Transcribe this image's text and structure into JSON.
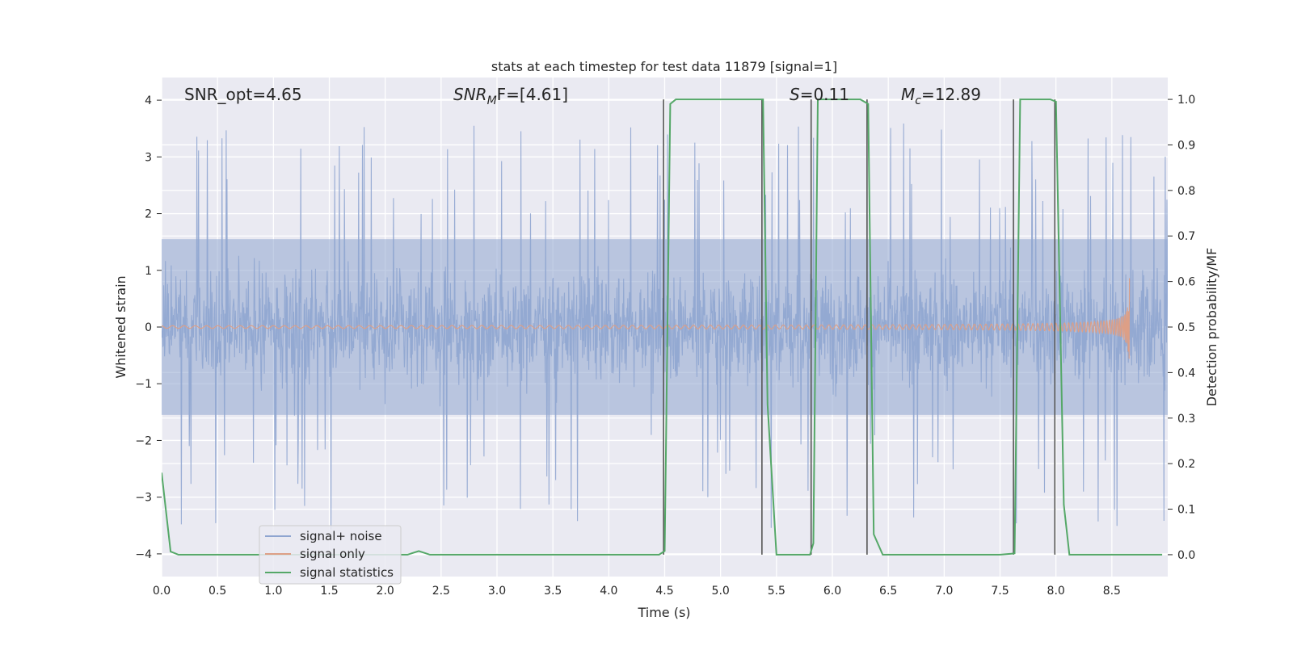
{
  "chart_data": {
    "type": "line",
    "title": "stats at each timestep for test data 11879 [signal=1]",
    "xlabel": "Time (s)",
    "ylabel": "Whitened strain",
    "ylabel_right": "Detection probability/MF",
    "xlim": [
      0.0,
      9.0
    ],
    "ylim": [
      -4.4,
      4.4
    ],
    "ylim_right": [
      -0.048,
      1.048
    ],
    "xticks": [
      0.0,
      0.5,
      1.0,
      1.5,
      2.0,
      2.5,
      3.0,
      3.5,
      4.0,
      4.5,
      5.0,
      5.5,
      6.0,
      6.5,
      7.0,
      7.5,
      8.0,
      8.5
    ],
    "xtick_labels": [
      "0.0",
      "0.5",
      "1.0",
      "1.5",
      "2.0",
      "2.5",
      "3.0",
      "3.5",
      "4.0",
      "4.5",
      "5.0",
      "5.5",
      "6.0",
      "6.5",
      "7.0",
      "7.5",
      "8.0",
      "8.5"
    ],
    "yticks": [
      -4,
      -3,
      -2,
      -1,
      0,
      1,
      2,
      3,
      4
    ],
    "ytick_labels": [
      "−4",
      "−3",
      "−2",
      "−1",
      "0",
      "1",
      "2",
      "3",
      "4"
    ],
    "yticks_right": [
      0.0,
      0.1,
      0.2,
      0.3,
      0.4,
      0.5,
      0.6,
      0.7,
      0.8,
      0.9,
      1.0
    ],
    "ytick_labels_right": [
      "0.0",
      "0.1",
      "0.2",
      "0.3",
      "0.4",
      "0.5",
      "0.6",
      "0.7",
      "0.8",
      "0.9",
      "1.0"
    ],
    "grid": true,
    "legend_position": "lower-left",
    "annotations": {
      "snr_opt": "SNR_opt=4.65",
      "snr_mf_main": "SNR",
      "snr_mf_sub": "M",
      "snr_mf_tail": "F=[4.61]",
      "s_main": "S",
      "s_tail": "=0.11",
      "mc_main": "M",
      "mc_sub": "c",
      "mc_tail": "=12.89"
    },
    "series": [
      {
        "name": "signal+ noise",
        "color": "#8fa5d0",
        "axis": "left",
        "description_values": "noise band roughly -1.6 to 1.6 with spikes up to about 3.6 and down to -4.0",
        "t_range": [
          0.0,
          9.0
        ]
      },
      {
        "name": "signal only",
        "color": "#dd9f86",
        "axis": "left",
        "t_range": [
          0.0,
          8.66
        ],
        "peak_amplitude": 0.95,
        "merger_time": 8.66
      },
      {
        "name": "signal statistics",
        "color": "#55a868",
        "axis": "right",
        "x": [
          0.0,
          0.08,
          0.15,
          0.4,
          1.0,
          1.5,
          2.0,
          2.2,
          2.3,
          2.4,
          3.0,
          3.5,
          4.0,
          4.45,
          4.5,
          4.55,
          4.6,
          5.0,
          5.38,
          5.42,
          5.5,
          5.8,
          5.83,
          5.87,
          6.0,
          6.25,
          6.32,
          6.37,
          6.45,
          7.0,
          7.5,
          7.6,
          7.63,
          7.68,
          7.73,
          7.95,
          8.0,
          8.07,
          8.12,
          8.5,
          8.95
        ],
        "y": [
          0.18,
          0.007,
          0.0,
          0.0,
          0.0,
          0.0,
          0.0,
          0.0,
          0.008,
          0.0,
          0.0,
          0.0,
          0.0,
          0.0,
          0.008,
          0.99,
          1.0,
          1.0,
          1.0,
          0.33,
          0.0,
          0.0,
          0.025,
          1.0,
          1.0,
          1.0,
          0.99,
          0.045,
          0.0,
          0.0,
          0.0,
          0.002,
          0.003,
          1.0,
          1.0,
          1.0,
          0.995,
          0.11,
          0.0,
          0.0,
          0.0
        ]
      }
    ],
    "vertical_lines": [
      4.49,
      5.37,
      5.81,
      6.31,
      7.62,
      7.99
    ],
    "vertical_line_color": "#555555"
  }
}
